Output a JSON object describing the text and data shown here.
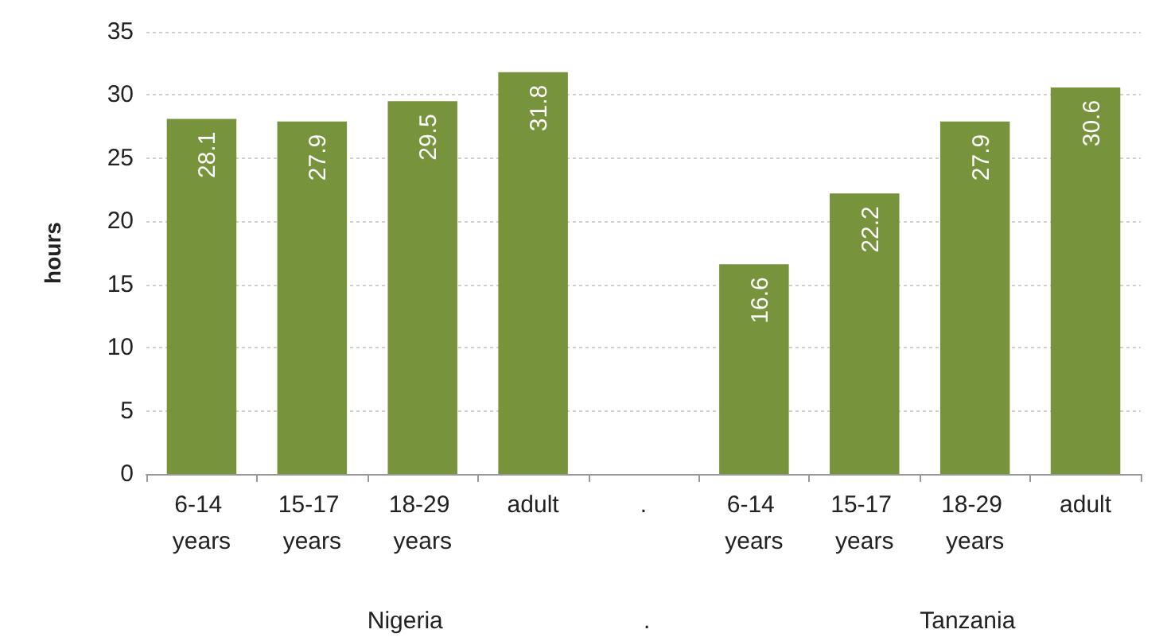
{
  "chart_data": {
    "type": "bar",
    "ylabel": "hours",
    "categories": [
      "6-14 years",
      "15-17 years",
      "18-29 years",
      "adult",
      ".",
      "6-14 years",
      "15-17 years",
      "18-29 years",
      "adult"
    ],
    "values": [
      28.1,
      27.9,
      29.5,
      31.8,
      null,
      16.6,
      22.2,
      27.9,
      30.6
    ],
    "color": "#77933c",
    "ylim": [
      0,
      35
    ],
    "yticks": [
      0,
      5,
      10,
      15,
      20,
      25,
      30,
      35
    ],
    "grid": "y",
    "data_labels": true,
    "annotations": [
      "Nigeria",
      ".",
      "Tanzania"
    ]
  }
}
